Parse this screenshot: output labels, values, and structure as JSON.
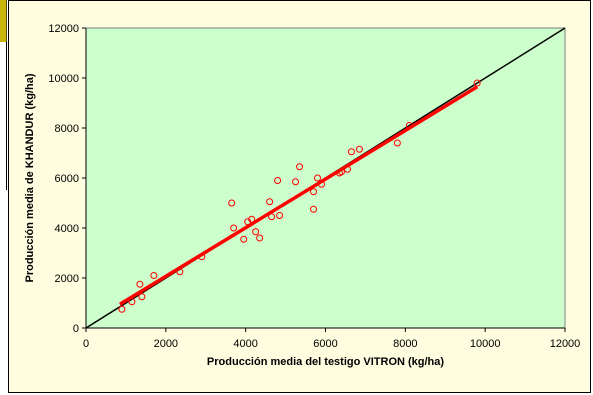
{
  "chart_data": {
    "type": "scatter",
    "title": "",
    "xlabel": "Producción media del testigo VITRON (kg/ha)",
    "ylabel": "Producción media de KHANDUR (kg/ha)",
    "xlim": [
      0,
      12000
    ],
    "ylim": [
      0,
      12000
    ],
    "x_ticks": [
      "0",
      "2000",
      "4000",
      "6000",
      "8000",
      "10000",
      "12000"
    ],
    "y_ticks": [
      "0",
      "2000",
      "4000",
      "6000",
      "8000",
      "10000",
      "12000"
    ],
    "grid": false,
    "legend": "none",
    "plot_background": "#ccffcc",
    "point_color": "#ff0000",
    "series": [
      {
        "points": [
          [
            900,
            750
          ],
          [
            1150,
            1050
          ],
          [
            1350,
            1750
          ],
          [
            1400,
            1250
          ],
          [
            1700,
            2100
          ],
          [
            2350,
            2250
          ],
          [
            2900,
            2850
          ],
          [
            3650,
            5000
          ],
          [
            3700,
            4000
          ],
          [
            3950,
            3550
          ],
          [
            4050,
            4250
          ],
          [
            4150,
            4350
          ],
          [
            4250,
            3850
          ],
          [
            4350,
            3600
          ],
          [
            4600,
            5050
          ],
          [
            4650,
            4450
          ],
          [
            4800,
            5900
          ],
          [
            4850,
            4500
          ],
          [
            5250,
            5850
          ],
          [
            5350,
            6450
          ],
          [
            5700,
            4750
          ],
          [
            5700,
            5450
          ],
          [
            5800,
            6000
          ],
          [
            5900,
            5750
          ],
          [
            6350,
            6200
          ],
          [
            6400,
            6250
          ],
          [
            6550,
            6350
          ],
          [
            6650,
            7050
          ],
          [
            6850,
            7150
          ],
          [
            7800,
            7400
          ],
          [
            8100,
            8100
          ],
          [
            9800,
            9800
          ]
        ]
      }
    ],
    "reference_line": {
      "x": [
        0,
        12000
      ],
      "y": [
        0,
        12000
      ],
      "color": "#000000"
    },
    "fit_line": {
      "x": [
        850,
        9800
      ],
      "y": [
        950,
        9650
      ],
      "color": "#ff0000"
    }
  }
}
